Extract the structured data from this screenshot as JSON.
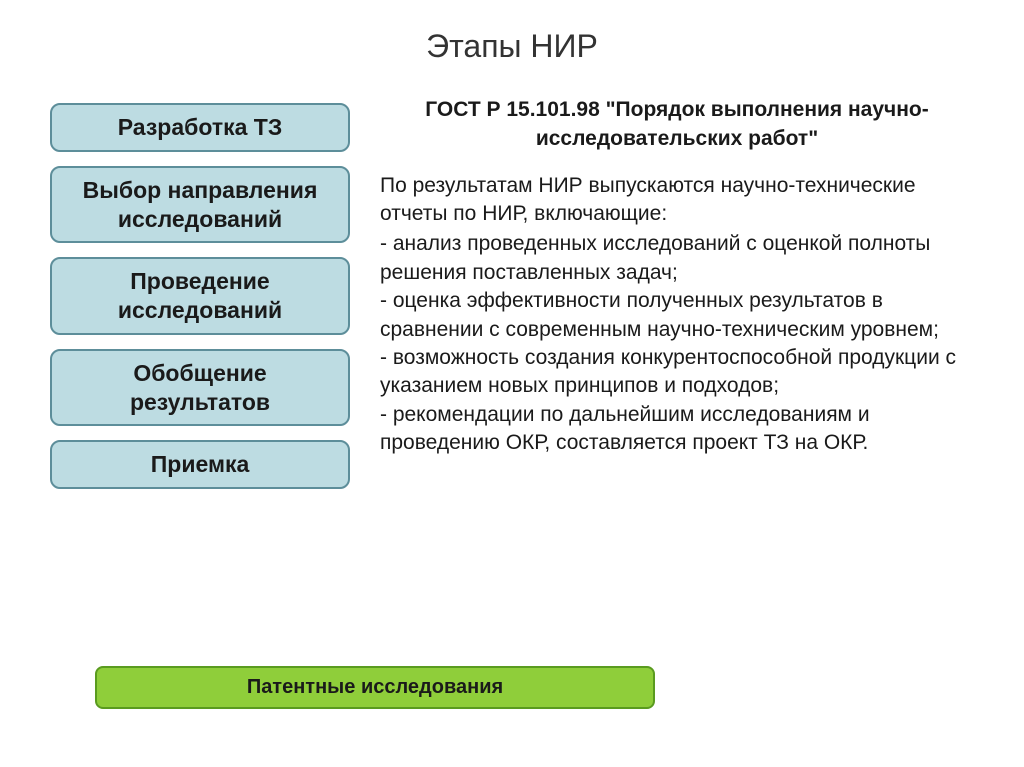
{
  "title": "Этапы НИР",
  "stages": [
    "Разработка ТЗ",
    "Выбор направления исследований",
    "Проведение исследований",
    "Обобщение результатов",
    "Приемка"
  ],
  "gost_header": "ГОСТ Р 15.101.98 \"Порядок выполнения научно-исследовательских работ\"",
  "body_intro": "По результатам НИР выпускаются научно-технические отчеты по НИР, включающие:",
  "body_items": [
    " - анализ проведенных исследований с оценкой полноты решения поставленных задач;",
    " - оценка эффективности полученных результатов в сравнении с современным научно-техническим уровнем;",
    " - возможность создания конкурентоспособной продукции с указанием новых принципов и подходов;",
    " - рекомендации по дальнейшим исследованиям и проведению ОКР, составляется проект ТЗ на ОКР."
  ],
  "bottom_bar": "Патентные исследования",
  "colors": {
    "stage_bg": "#bddce2",
    "stage_border": "#5d8e9a",
    "bottom_bg": "#8fce3a",
    "bottom_border": "#5a9b1f",
    "text": "#1a1a1a",
    "title": "#333333",
    "page_bg": "#ffffff"
  },
  "layout": {
    "slide_width": 1024,
    "slide_height": 767,
    "left_col_width": 300,
    "stage_border_radius": 10,
    "bottom_bar_radius": 8
  },
  "typography": {
    "title_size": 32,
    "stage_size": 23,
    "body_size": 21,
    "gost_size": 21,
    "bottom_size": 20,
    "font_family": "Arial"
  }
}
